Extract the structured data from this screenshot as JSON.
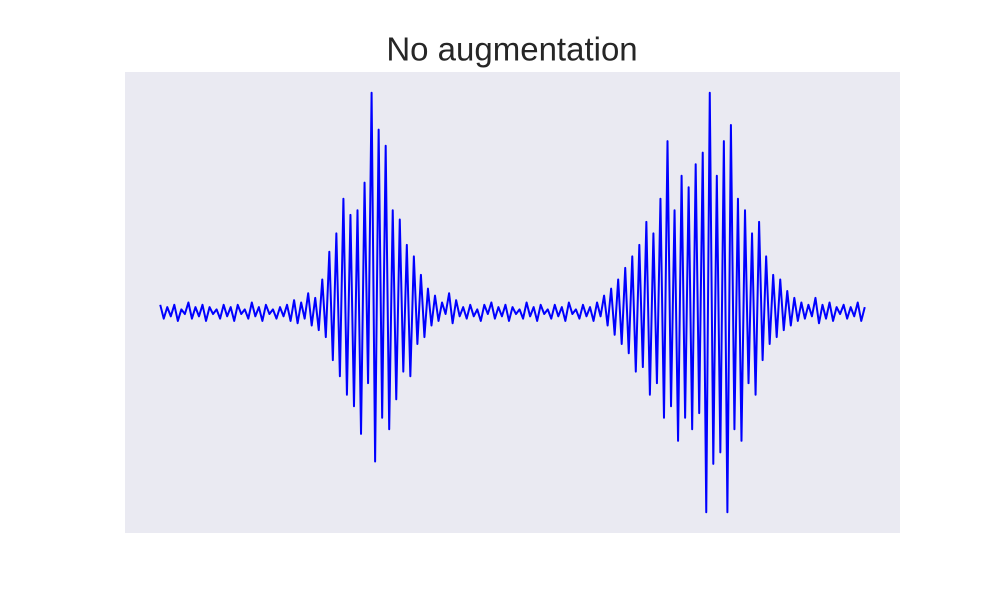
{
  "chart_data": {
    "type": "line",
    "title": "No augmentation",
    "x": [
      0,
      0.005,
      0.01,
      0.015,
      0.02,
      0.025,
      0.03,
      0.035,
      0.04,
      0.045,
      0.05,
      0.055,
      0.06,
      0.065,
      0.07,
      0.075,
      0.08,
      0.085,
      0.09,
      0.095,
      0.1,
      0.105,
      0.11,
      0.115,
      0.12,
      0.125,
      0.13,
      0.135,
      0.14,
      0.145,
      0.15,
      0.155,
      0.16,
      0.165,
      0.17,
      0.175,
      0.18,
      0.185,
      0.19,
      0.195,
      0.2,
      0.205,
      0.21,
      0.215,
      0.22,
      0.225,
      0.23,
      0.235,
      0.24,
      0.245,
      0.25,
      0.255,
      0.26,
      0.265,
      0.27,
      0.275,
      0.28,
      0.285,
      0.29,
      0.295,
      0.3,
      0.305,
      0.31,
      0.315,
      0.32,
      0.325,
      0.33,
      0.335,
      0.34,
      0.345,
      0.35,
      0.355,
      0.36,
      0.365,
      0.37,
      0.375,
      0.38,
      0.385,
      0.39,
      0.395,
      0.4,
      0.405,
      0.41,
      0.415,
      0.42,
      0.425,
      0.43,
      0.435,
      0.44,
      0.445,
      0.45,
      0.455,
      0.46,
      0.465,
      0.47,
      0.475,
      0.48,
      0.485,
      0.49,
      0.495,
      0.5,
      0.505,
      0.51,
      0.515,
      0.52,
      0.525,
      0.53,
      0.535,
      0.54,
      0.545,
      0.55,
      0.555,
      0.56,
      0.565,
      0.57,
      0.575,
      0.58,
      0.585,
      0.59,
      0.595,
      0.6,
      0.605,
      0.61,
      0.615,
      0.62,
      0.625,
      0.63,
      0.635,
      0.64,
      0.645,
      0.65,
      0.655,
      0.66,
      0.665,
      0.67,
      0.675,
      0.68,
      0.685,
      0.69,
      0.695,
      0.7,
      0.705,
      0.71,
      0.715,
      0.72,
      0.725,
      0.73,
      0.735,
      0.74,
      0.745,
      0.75,
      0.755,
      0.76,
      0.765,
      0.77,
      0.775,
      0.78,
      0.785,
      0.79,
      0.795,
      0.8,
      0.805,
      0.81,
      0.815,
      0.82,
      0.825,
      0.83,
      0.835,
      0.84,
      0.845,
      0.85,
      0.855,
      0.86,
      0.865,
      0.87,
      0.875,
      0.88,
      0.885,
      0.89,
      0.895,
      0.9,
      0.905,
      0.91,
      0.915,
      0.92,
      0.925,
      0.93,
      0.935,
      0.94,
      0.945,
      0.95,
      0.955,
      0.96,
      0.965,
      0.97,
      0.975,
      0.98,
      0.985,
      0.99,
      0.995,
      1
    ],
    "values": [
      -0.01,
      -0.07,
      -0.02,
      -0.06,
      -0.01,
      -0.08,
      -0.03,
      -0.05,
      0.0,
      -0.07,
      -0.02,
      -0.06,
      -0.01,
      -0.08,
      -0.02,
      -0.05,
      -0.03,
      -0.07,
      -0.01,
      -0.06,
      -0.02,
      -0.08,
      -0.01,
      -0.05,
      -0.03,
      -0.07,
      0.0,
      -0.06,
      -0.02,
      -0.08,
      -0.01,
      -0.05,
      -0.03,
      -0.07,
      -0.02,
      -0.06,
      -0.01,
      -0.08,
      0.01,
      -0.09,
      0.0,
      -0.07,
      0.04,
      -0.1,
      0.02,
      -0.12,
      0.1,
      -0.15,
      0.22,
      -0.25,
      0.3,
      -0.32,
      0.45,
      -0.4,
      0.38,
      -0.45,
      0.4,
      -0.57,
      0.52,
      -0.35,
      0.91,
      -0.69,
      0.75,
      -0.5,
      0.68,
      -0.55,
      0.4,
      -0.42,
      0.36,
      -0.3,
      0.25,
      -0.32,
      0.2,
      -0.18,
      0.12,
      -0.15,
      0.06,
      -0.1,
      0.03,
      -0.08,
      0.0,
      -0.05,
      0.04,
      -0.09,
      0.01,
      -0.06,
      -0.02,
      -0.07,
      -0.01,
      -0.06,
      -0.03,
      -0.08,
      -0.01,
      -0.05,
      0.0,
      -0.07,
      -0.02,
      -0.06,
      -0.01,
      -0.08,
      -0.02,
      -0.05,
      -0.03,
      -0.07,
      0.0,
      -0.06,
      -0.02,
      -0.08,
      -0.01,
      -0.05,
      -0.03,
      -0.07,
      -0.01,
      -0.06,
      -0.02,
      -0.08,
      0.0,
      -0.05,
      -0.03,
      -0.07,
      -0.01,
      -0.06,
      -0.02,
      -0.08,
      0.0,
      -0.06,
      0.03,
      -0.1,
      0.06,
      -0.14,
      0.1,
      -0.18,
      0.15,
      -0.22,
      0.2,
      -0.3,
      0.25,
      -0.28,
      0.35,
      -0.4,
      0.3,
      -0.35,
      0.45,
      -0.5,
      0.7,
      -0.45,
      0.4,
      -0.6,
      0.55,
      -0.5,
      0.5,
      -0.55,
      0.6,
      -0.48,
      0.65,
      -0.91,
      0.91,
      -0.7,
      0.55,
      -0.65,
      0.7,
      -0.91,
      0.77,
      -0.55,
      0.45,
      -0.6,
      0.4,
      -0.35,
      0.3,
      -0.4,
      0.35,
      -0.25,
      0.2,
      -0.18,
      0.12,
      -0.15,
      0.1,
      -0.12,
      0.05,
      -0.1,
      0.02,
      -0.08,
      0.0,
      -0.07,
      -0.01,
      -0.06,
      0.02,
      -0.09,
      -0.01,
      -0.07,
      0.0,
      -0.08,
      -0.02,
      -0.05,
      -0.01,
      -0.07,
      -0.02,
      -0.06,
      0.0,
      -0.08,
      -0.02
    ],
    "color": "#0000ff",
    "xlim": [
      -0.05,
      1.05
    ],
    "ylim": [
      -1,
      1
    ],
    "grid": false
  }
}
